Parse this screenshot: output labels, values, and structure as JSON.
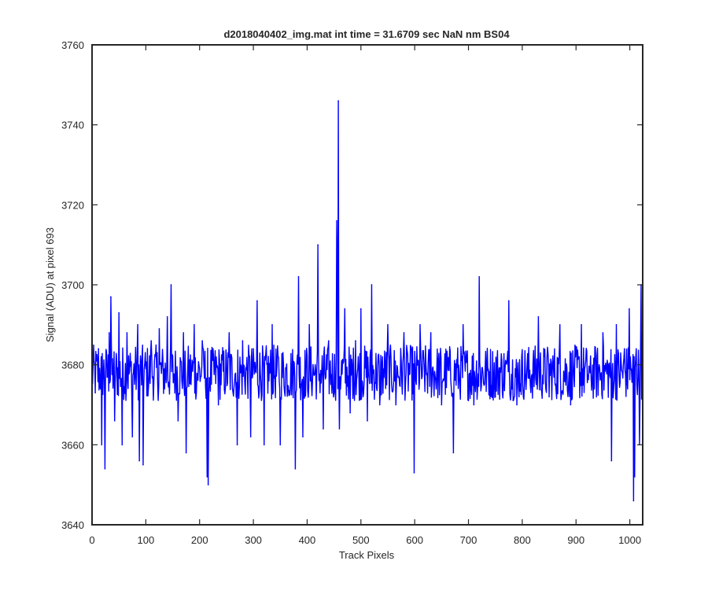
{
  "chart_data": {
    "type": "line",
    "title": "d2018040402_img.mat int time = 31.6709 sec  NaN nm BS04",
    "xlabel": "Track Pixels",
    "ylabel": "Signal (ADU) at pixel 693",
    "xlim": [
      0,
      1024
    ],
    "ylim": [
      3640,
      3760
    ],
    "xticks": [
      0,
      100,
      200,
      300,
      400,
      500,
      600,
      700,
      800,
      900,
      1000
    ],
    "yticks": [
      3640,
      3660,
      3680,
      3700,
      3720,
      3740,
      3760
    ],
    "grid": false,
    "series": [
      {
        "color": "#0000ff",
        "baseline": 3678,
        "noise_amplitude": 7,
        "points": [
          [
            0,
            3680
          ],
          [
            6,
            3673
          ],
          [
            12,
            3684
          ],
          [
            18,
            3660
          ],
          [
            24,
            3654
          ],
          [
            32,
            3688
          ],
          [
            35,
            3697
          ],
          [
            42,
            3666
          ],
          [
            50,
            3693
          ],
          [
            56,
            3660
          ],
          [
            65,
            3688
          ],
          [
            75,
            3662
          ],
          [
            85,
            3690
          ],
          [
            88,
            3656
          ],
          [
            95,
            3655
          ],
          [
            110,
            3686
          ],
          [
            125,
            3689
          ],
          [
            140,
            3692
          ],
          [
            147,
            3700
          ],
          [
            160,
            3666
          ],
          [
            170,
            3688
          ],
          [
            175,
            3658
          ],
          [
            190,
            3690
          ],
          [
            205,
            3686
          ],
          [
            214,
            3652
          ],
          [
            216,
            3650
          ],
          [
            225,
            3684
          ],
          [
            235,
            3670
          ],
          [
            255,
            3688
          ],
          [
            270,
            3660
          ],
          [
            280,
            3686
          ],
          [
            295,
            3662
          ],
          [
            300,
            3684
          ],
          [
            307,
            3696
          ],
          [
            320,
            3660
          ],
          [
            335,
            3690
          ],
          [
            350,
            3660
          ],
          [
            378,
            3654
          ],
          [
            384,
            3702
          ],
          [
            392,
            3662
          ],
          [
            404,
            3690
          ],
          [
            420,
            3710
          ],
          [
            430,
            3664
          ],
          [
            440,
            3686
          ],
          [
            455,
            3716
          ],
          [
            456,
            3704
          ],
          [
            458,
            3746
          ],
          [
            460,
            3664
          ],
          [
            470,
            3694
          ],
          [
            480,
            3668
          ],
          [
            490,
            3686
          ],
          [
            500,
            3694
          ],
          [
            512,
            3666
          ],
          [
            520,
            3700
          ],
          [
            535,
            3670
          ],
          [
            550,
            3690
          ],
          [
            565,
            3670
          ],
          [
            580,
            3688
          ],
          [
            599,
            3653
          ],
          [
            610,
            3690
          ],
          [
            630,
            3688
          ],
          [
            650,
            3670
          ],
          [
            672,
            3658
          ],
          [
            690,
            3690
          ],
          [
            710,
            3670
          ],
          [
            720,
            3702
          ],
          [
            750,
            3672
          ],
          [
            775,
            3696
          ],
          [
            790,
            3670
          ],
          [
            830,
            3692
          ],
          [
            850,
            3672
          ],
          [
            870,
            3690
          ],
          [
            890,
            3670
          ],
          [
            910,
            3690
          ],
          [
            926,
            3678
          ],
          [
            950,
            3688
          ],
          [
            966,
            3656
          ],
          [
            975,
            3690
          ],
          [
            990,
            3684
          ],
          [
            999,
            3694
          ],
          [
            1007,
            3646
          ],
          [
            1009,
            3652
          ],
          [
            1012,
            3684
          ],
          [
            1018,
            3660
          ],
          [
            1021,
            3700
          ],
          [
            1024,
            3690
          ]
        ]
      }
    ]
  }
}
